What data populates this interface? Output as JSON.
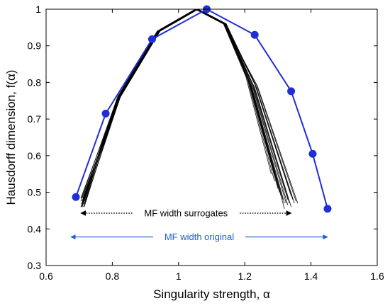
{
  "chart_data": {
    "type": "line",
    "xlabel": "Singularity strength, α",
    "ylabel": "Hausdorff dimension, f(α)",
    "xlim": [
      0.6,
      1.6
    ],
    "ylim": [
      0.3,
      1.0
    ],
    "xticks": [
      "0.6",
      "0.8",
      "1",
      "1.2",
      "1.4",
      "1.6"
    ],
    "yticks": [
      "0.3",
      "0.4",
      "0.5",
      "0.6",
      "0.7",
      "0.8",
      "0.9",
      "1"
    ],
    "grid": false,
    "colors": {
      "original": "#1f2ed6",
      "surrogates": "#000000",
      "annotation_original": "#1f5fd6"
    },
    "series": [
      {
        "role": "original",
        "x": [
          0.69,
          0.78,
          0.92,
          1.085,
          1.23,
          1.34,
          1.405,
          1.45
        ],
        "y": [
          0.487,
          0.715,
          0.918,
          1.0,
          0.93,
          0.776,
          0.605,
          0.455
        ]
      }
    ],
    "surrogates": {
      "count": 20,
      "x_left": [
        0.705,
        0.82,
        0.94,
        1.055,
        1.14
      ],
      "y_left": [
        0.46,
        0.76,
        0.94,
        1.0,
        0.96
      ],
      "right_ends": [
        {
          "x": 1.28,
          "y": 0.55
        },
        {
          "x": 1.29,
          "y": 0.53
        },
        {
          "x": 1.3,
          "y": 0.52
        },
        {
          "x": 1.305,
          "y": 0.5
        },
        {
          "x": 1.31,
          "y": 0.49
        },
        {
          "x": 1.315,
          "y": 0.48
        },
        {
          "x": 1.32,
          "y": 0.47
        },
        {
          "x": 1.325,
          "y": 0.47
        },
        {
          "x": 1.33,
          "y": 0.465
        },
        {
          "x": 1.33,
          "y": 0.48
        },
        {
          "x": 1.335,
          "y": 0.47
        },
        {
          "x": 1.34,
          "y": 0.46
        },
        {
          "x": 1.34,
          "y": 0.49
        },
        {
          "x": 1.345,
          "y": 0.48
        },
        {
          "x": 1.35,
          "y": 0.47
        },
        {
          "x": 1.355,
          "y": 0.475
        },
        {
          "x": 1.36,
          "y": 0.47
        },
        {
          "x": 1.3,
          "y": 0.51
        },
        {
          "x": 1.29,
          "y": 0.545
        },
        {
          "x": 1.32,
          "y": 0.455
        }
      ]
    },
    "annotations": {
      "surrogates": {
        "label": "MF width surrogates",
        "x_from": 0.705,
        "x_to": 1.34,
        "y": 0.443
      },
      "original": {
        "label": "MF width original",
        "x_from": 0.675,
        "x_to": 1.45,
        "y": 0.378
      }
    }
  }
}
